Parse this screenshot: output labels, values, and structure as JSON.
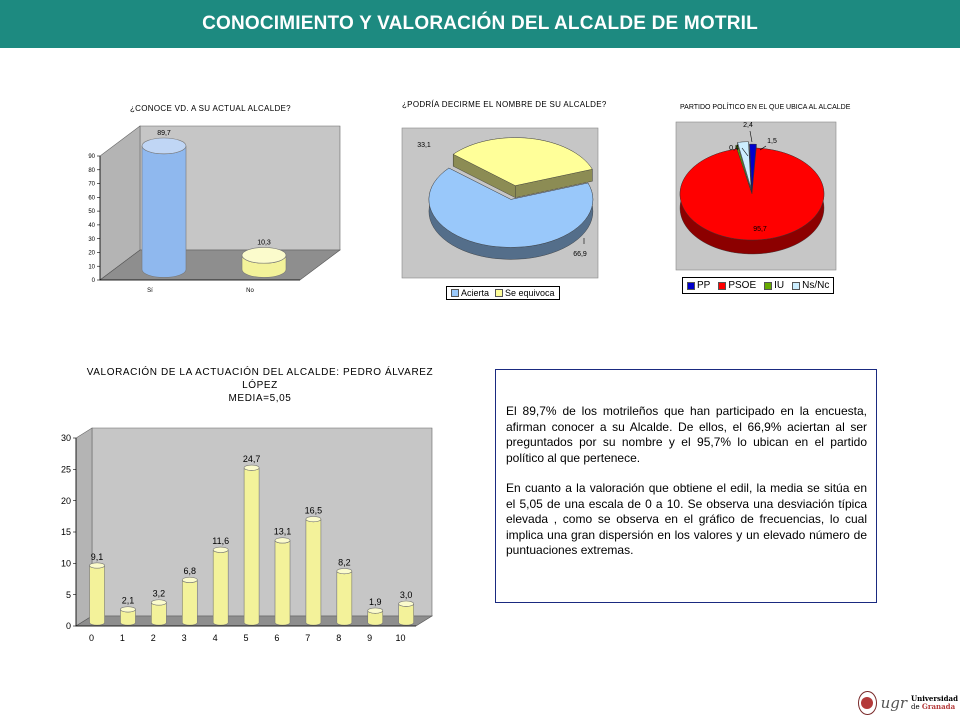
{
  "header": {
    "title": "CONOCIMIENTO Y VALORACIÓN DEL ALCALDE DE MOTRIL"
  },
  "chart_data": [
    {
      "id": "conoce",
      "type": "bar",
      "title": "¿CONOCE VD. A SU ACTUAL ALCALDE?",
      "categories": [
        "Sí",
        "No"
      ],
      "values": [
        89.7,
        10.3
      ],
      "value_labels": [
        "89,7",
        "10,3"
      ],
      "ylim": [
        0,
        90
      ],
      "yticks": [
        0,
        10,
        20,
        30,
        40,
        50,
        60,
        70,
        80,
        90
      ],
      "colors": {
        "bar": "#8fb8ee",
        "bar_top": "#c0d6f5",
        "bar2": "#f3f29a",
        "bar2_top": "#fbfbcc",
        "floor": "#8e8e8e",
        "wall": "#c6c6c6"
      }
    },
    {
      "id": "nombre",
      "type": "pie",
      "title": "¿PODRÍA DECIRME EL NOMBRE DE SU ALCALDE?",
      "series": [
        {
          "name": "Acierta",
          "value": 66.9,
          "label": "66,9",
          "color": "#99c8fa"
        },
        {
          "name": "Se equivoca",
          "value": 33.1,
          "label": "33,1",
          "color": "#ffff99"
        }
      ],
      "legend": "bottom"
    },
    {
      "id": "partido",
      "type": "pie",
      "title": "PARTIDO POLÍTICO EN EL QUE UBICA AL ALCALDE",
      "series": [
        {
          "name": "PP",
          "value": 1.5,
          "label": "1,5",
          "color": "#0000cc"
        },
        {
          "name": "PSOE",
          "value": 95.7,
          "label": "95,7",
          "color": "#ff0000"
        },
        {
          "name": "IU",
          "value": 0.4,
          "label": "0,4",
          "color": "#66aa00"
        },
        {
          "name": "Ns/Nc",
          "value": 2.4,
          "label": "2,4",
          "color": "#cceeff"
        }
      ],
      "legend": "bottom"
    },
    {
      "id": "valoracion",
      "type": "bar",
      "title_lines": [
        "VALORACIÓN DE LA ACTUACIÓN DEL ALCALDE: PEDRO ÁLVAREZ",
        "LÓPEZ",
        "MEDIA=5,05"
      ],
      "categories": [
        "0",
        "1",
        "2",
        "3",
        "4",
        "5",
        "6",
        "7",
        "8",
        "9",
        "10"
      ],
      "values": [
        9.1,
        2.1,
        3.2,
        6.8,
        11.6,
        24.7,
        13.1,
        16.5,
        8.2,
        1.9,
        3.0
      ],
      "value_labels": [
        "9,1",
        "2,1",
        "3,2",
        "6,8",
        "11,6",
        "24,7",
        "13,1",
        "16,5",
        "8,2",
        "1,9",
        "3,0"
      ],
      "ylim": [
        0,
        30
      ],
      "yticks": [
        0,
        5,
        10,
        15,
        20,
        25,
        30
      ],
      "colors": {
        "bar": "#f3f29a",
        "bar_top": "#fbfbcc",
        "floor": "#8e8e8e",
        "wall": "#c6c6c6"
      }
    }
  ],
  "text": {
    "p1": "El 89,7% de los motrileños que han participado en la encuesta, afirman conocer a su Alcalde. De ellos, el 66,9% aciertan al ser preguntados por su nombre y el 95,7% lo ubican en el partido político al que pertenece.",
    "p2": "En cuanto a la valoración que obtiene el edil, la media se sitúa en el 5,05 de una escala de 0 a 10. Se observa una desviación típica elevada , como se observa en el gráfico de frecuencias, lo cual implica una gran dispersión en los valores y un elevado número de puntuaciones extremas."
  },
  "logo": {
    "ugr": "ugr",
    "line1": "Universidad",
    "line2_prefix": "de",
    "line2_name": "Granada"
  }
}
